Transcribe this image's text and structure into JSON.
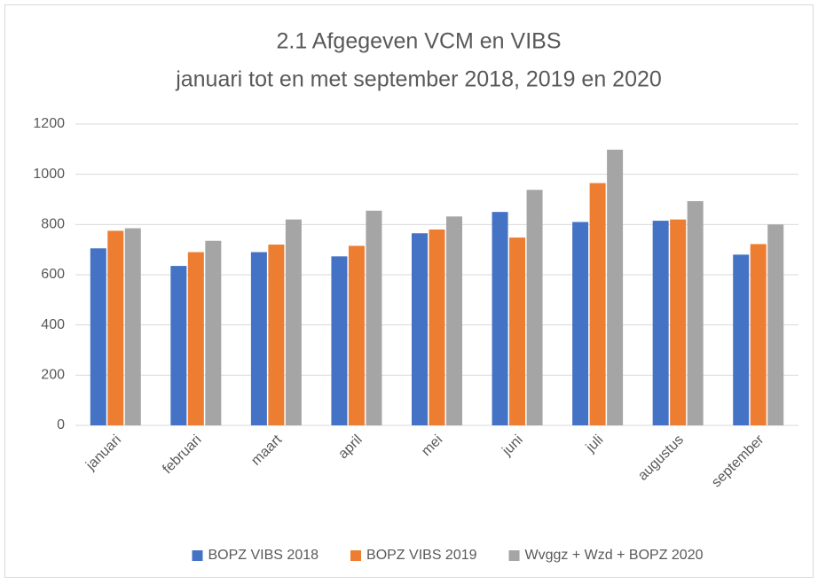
{
  "chart_data": {
    "type": "bar",
    "title": "2.1 Afgegeven VCM en VIBS",
    "subtitle": "januari tot en met september 2018, 2019 en 2020",
    "categories": [
      "januari",
      "februari",
      "maart",
      "april",
      "mei",
      "juni",
      "juli",
      "augustus",
      "september"
    ],
    "series": [
      {
        "name": "BOPZ VIBS 2018",
        "color": "#4472c4",
        "values": [
          705,
          635,
          690,
          673,
          765,
          850,
          810,
          815,
          680
        ]
      },
      {
        "name": "BOPZ VIBS 2019",
        "color": "#ed7d31",
        "values": [
          775,
          690,
          720,
          715,
          780,
          748,
          965,
          820,
          722
        ]
      },
      {
        "name": "Wvggz + Wzd + BOPZ 2020",
        "color": "#a5a5a5",
        "values": [
          785,
          735,
          820,
          855,
          832,
          938,
          1098,
          893,
          800
        ]
      }
    ],
    "ylim": [
      0,
      1200
    ],
    "yticks": [
      0,
      200,
      400,
      600,
      800,
      1000,
      1200
    ],
    "grid": true,
    "legend": "bottom"
  }
}
